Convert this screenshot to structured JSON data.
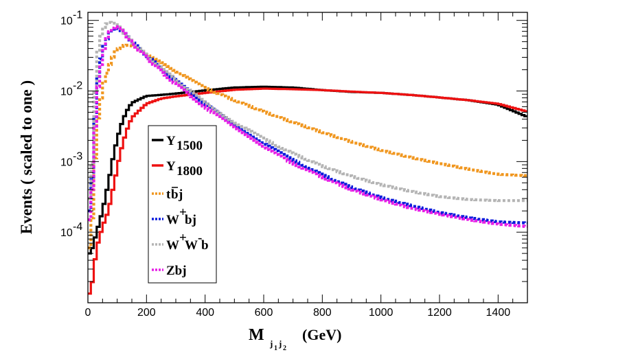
{
  "chart_data": {
    "type": "line",
    "title": "",
    "xlabel": "M",
    "xlabel_subscript": "j1j2",
    "xlabel_sub_j1": "j",
    "xlabel_sub_j1_index": "1",
    "xlabel_sub_j2": "j",
    "xlabel_sub_j2_index": "2",
    "xlabel_unit": "(GeV)",
    "ylabel": "Events  ( scaled to one )",
    "xlim": [
      0,
      1500
    ],
    "ylim": [
      1e-05,
      0.13
    ],
    "yscale": "log",
    "grid": false,
    "legend_position": "center-left",
    "x_ticks": [
      "0",
      "200",
      "400",
      "600",
      "800",
      "1000",
      "1200",
      "1400"
    ],
    "y_ticks": [
      {
        "base": "10",
        "exp": "-4",
        "value": 0.0001
      },
      {
        "base": "10",
        "exp": "-3",
        "value": 0.001
      },
      {
        "base": "10",
        "exp": "-2",
        "value": 0.01
      },
      {
        "base": "10",
        "exp": "-1",
        "value": 0.1
      }
    ],
    "x": [
      10,
      30,
      50,
      70,
      90,
      110,
      130,
      150,
      200,
      250,
      300,
      400,
      500,
      600,
      700,
      800,
      900,
      1000,
      1100,
      1200,
      1300,
      1400,
      1500
    ],
    "series": [
      {
        "name": "Y",
        "sub": "1500",
        "sup": "",
        "color": "#000000",
        "dash": "solid",
        "values": [
          5e-05,
          0.0001,
          0.0002,
          0.0005,
          0.0014,
          0.003,
          0.005,
          0.0068,
          0.0085,
          0.0088,
          0.0092,
          0.0102,
          0.0112,
          0.0115,
          0.0112,
          0.0103,
          0.0097,
          0.0094,
          0.0088,
          0.0081,
          0.0074,
          0.0064,
          0.0043
        ]
      },
      {
        "name": "Y",
        "sub": "1800",
        "sup": "",
        "color": "#ee1111",
        "dash": "solid",
        "values": [
          1.35e-05,
          6e-05,
          0.00012,
          0.0002,
          0.0005,
          0.0013,
          0.0026,
          0.0042,
          0.0066,
          0.0078,
          0.0084,
          0.0094,
          0.0104,
          0.0108,
          0.0106,
          0.0103,
          0.0098,
          0.0094,
          0.0088,
          0.0081,
          0.0074,
          0.0066,
          0.0051
        ]
      },
      {
        "name": "t",
        "bar_name": "b",
        "tail_name": "j",
        "sub": "",
        "sup": "",
        "color": "#f0961e",
        "dash": "dotted",
        "values": [
          6e-05,
          0.003,
          0.011,
          0.021,
          0.034,
          0.042,
          0.045,
          0.043,
          0.034,
          0.026,
          0.019,
          0.011,
          0.0074,
          0.0051,
          0.0036,
          0.0026,
          0.0019,
          0.00145,
          0.00115,
          0.00094,
          0.00078,
          0.00066,
          0.00063
        ]
      },
      {
        "name": "W",
        "sup": "+",
        "tail_name": "bj",
        "sub": "",
        "color": "#0a1adc",
        "dash": "dotted",
        "values": [
          0.0002,
          0.012,
          0.038,
          0.062,
          0.08,
          0.075,
          0.062,
          0.05,
          0.032,
          0.021,
          0.014,
          0.0066,
          0.0033,
          0.0018,
          0.00105,
          0.00065,
          0.00043,
          0.00031,
          0.00024,
          0.00019,
          0.00016,
          0.00014,
          0.000135
        ]
      },
      {
        "name": "W",
        "sup": "+",
        "mid_name": "W",
        "mid_sup": "-",
        "tail_name": "b",
        "sub": "",
        "color": "#b4b4b4",
        "dash": "dotted",
        "values": [
          0.0003,
          0.03,
          0.075,
          0.095,
          0.09,
          0.078,
          0.062,
          0.05,
          0.032,
          0.021,
          0.0145,
          0.0068,
          0.0036,
          0.0021,
          0.0013,
          0.00086,
          0.00062,
          0.00047,
          0.00038,
          0.00032,
          0.00029,
          0.00028,
          0.00028
        ]
      },
      {
        "name": "Zbj",
        "sup": "",
        "sub": "",
        "color": "#e61ee6",
        "dash": "dotted",
        "values": [
          0.00015,
          0.008,
          0.034,
          0.065,
          0.083,
          0.076,
          0.062,
          0.048,
          0.03,
          0.019,
          0.0125,
          0.0059,
          0.003,
          0.0016,
          0.00094,
          0.0006,
          0.0004,
          0.00029,
          0.00022,
          0.00018,
          0.00015,
          0.00013,
          0.00012
        ]
      }
    ]
  }
}
